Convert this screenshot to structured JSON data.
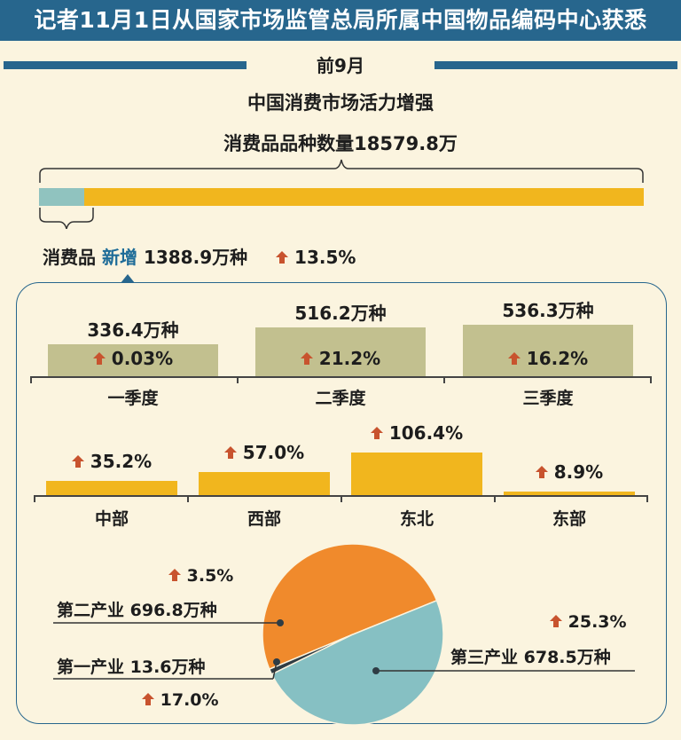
{
  "header": {
    "title": "记者11月1日从国家市场监管总局所属中国物品编码中心获悉",
    "period": "前9月",
    "headline": "中国消费市场活力增强",
    "total_text": "消费品品种数量18579.8万"
  },
  "new_items": {
    "label_prefix": "消费品",
    "label_highlight": "新增",
    "value": "1388.9万种",
    "growth": "13.5%"
  },
  "colors": {
    "banner": "#27668d",
    "total_bar": "#f1b61e",
    "new_bar": "#90c3bf",
    "quarter_bar": "#c2c08f",
    "region_bar": "#f1b61e",
    "pie_secondary": "#f08a2c",
    "pie_tertiary": "#86c0c3",
    "pie_primary": "#2f3c44",
    "arrow": "#c8532e"
  },
  "chart_data": [
    {
      "type": "bar",
      "name": "total-vs-new",
      "categories": [
        "消费品品种数量",
        "消费品新增"
      ],
      "values": [
        18579.8,
        1388.9
      ],
      "unit": "万种"
    },
    {
      "type": "bar",
      "name": "quarterly",
      "categories": [
        "一季度",
        "二季度",
        "三季度"
      ],
      "values": [
        336.4,
        516.2,
        536.3
      ],
      "value_labels": [
        "336.4万种",
        "516.2万种",
        "536.3万种"
      ],
      "growth": [
        "0.03%",
        "21.2%",
        "16.2%"
      ],
      "unit": "万种"
    },
    {
      "type": "bar",
      "name": "regional-growth",
      "categories": [
        "中部",
        "西部",
        "东北",
        "东部"
      ],
      "values": [
        35.2,
        57.0,
        106.4,
        8.9
      ],
      "value_labels": [
        "35.2%",
        "57.0%",
        "106.4%",
        "8.9%"
      ],
      "unit": "%"
    },
    {
      "type": "pie",
      "name": "industry",
      "slices": [
        {
          "name": "第二产业",
          "value": 696.8,
          "value_label": "696.8万种",
          "growth": "3.5%",
          "color": "#f08a2c"
        },
        {
          "name": "第一产业",
          "value": 13.6,
          "value_label": "13.6万种",
          "growth": "17.0%",
          "color": "#2f3c44"
        },
        {
          "name": "第三产业",
          "value": 678.5,
          "value_label": "678.5万种",
          "growth": "25.3%",
          "color": "#86c0c3"
        }
      ],
      "unit": "万种"
    }
  ]
}
